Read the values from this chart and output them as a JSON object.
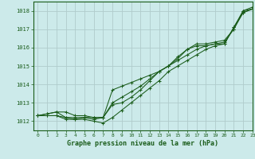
{
  "title": "Graphe pression niveau de la mer (hPa)",
  "bg_color": "#cceaea",
  "grid_color": "#b0cccc",
  "line_color": "#1a5c1a",
  "xlim": [
    -0.5,
    23
  ],
  "ylim": [
    1011.5,
    1018.5
  ],
  "yticks": [
    1012,
    1013,
    1014,
    1015,
    1016,
    1017,
    1018
  ],
  "xticks": [
    0,
    1,
    2,
    3,
    4,
    5,
    6,
    7,
    8,
    9,
    10,
    11,
    12,
    13,
    14,
    15,
    16,
    17,
    18,
    19,
    20,
    21,
    22,
    23
  ],
  "series": [
    [
      1012.3,
      1012.3,
      1012.3,
      1012.2,
      1012.1,
      1012.1,
      1012.0,
      1011.9,
      1012.2,
      1012.6,
      1013.0,
      1013.4,
      1013.8,
      1014.2,
      1014.7,
      1015.0,
      1015.3,
      1015.6,
      1015.9,
      1016.1,
      1016.2,
      1017.1,
      1018.0,
      1018.1
    ],
    [
      1012.3,
      1012.3,
      1012.3,
      1012.1,
      1012.1,
      1012.2,
      1012.1,
      1012.2,
      1013.7,
      1013.9,
      1014.1,
      1014.3,
      1014.5,
      1014.7,
      1015.0,
      1015.3,
      1015.6,
      1015.9,
      1016.1,
      1016.2,
      1016.3,
      1017.0,
      1017.9,
      1018.1
    ],
    [
      1012.3,
      1012.4,
      1012.5,
      1012.2,
      1012.2,
      1012.2,
      1012.2,
      1012.2,
      1013.0,
      1013.3,
      1013.6,
      1013.9,
      1014.3,
      1014.7,
      1015.0,
      1015.4,
      1015.9,
      1016.1,
      1016.1,
      1016.2,
      1016.2,
      1017.1,
      1017.9,
      1018.1
    ],
    [
      1012.3,
      1012.4,
      1012.5,
      1012.5,
      1012.3,
      1012.3,
      1012.2,
      1012.2,
      1012.9,
      1013.0,
      1013.3,
      1013.7,
      1014.2,
      1014.7,
      1015.0,
      1015.5,
      1015.9,
      1016.2,
      1016.2,
      1016.3,
      1016.4,
      1017.0,
      1018.0,
      1018.2
    ]
  ]
}
